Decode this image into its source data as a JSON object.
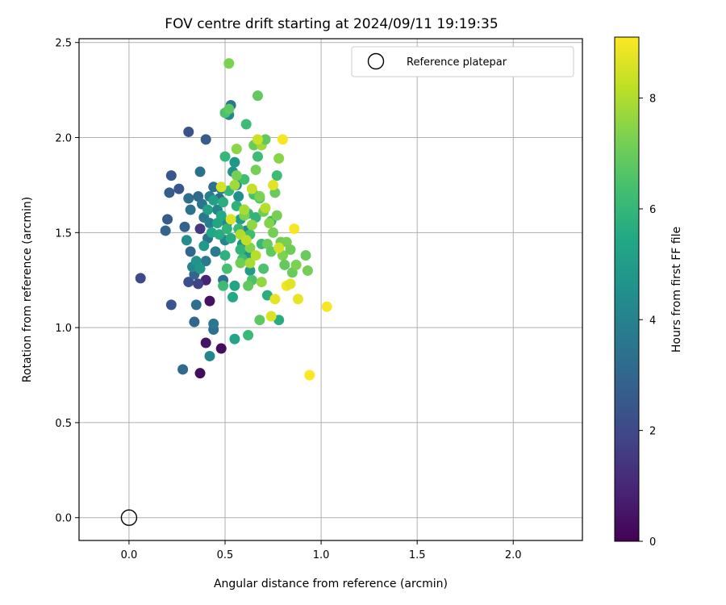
{
  "chart_data": {
    "type": "scatter",
    "title": "FOV centre drift starting at 2024/09/11 19:19:35",
    "xlabel": "Angular distance from reference (arcmin)",
    "ylabel": "Rotation from reference (arcmin)",
    "xlim": [
      -0.26,
      2.36
    ],
    "ylim": [
      -0.12,
      2.52
    ],
    "xticks": [
      0.0,
      0.5,
      1.0,
      1.5,
      2.0
    ],
    "xtick_labels": [
      "0.0",
      "0.5",
      "1.0",
      "1.5",
      "2.0"
    ],
    "yticks": [
      0.0,
      0.5,
      1.0,
      1.5,
      2.0,
      2.5
    ],
    "ytick_labels": [
      "0.0",
      "0.5",
      "1.0",
      "1.5",
      "2.0",
      "2.5"
    ],
    "grid": true,
    "legend": {
      "position": "upper right",
      "label": "Reference platepar"
    },
    "reference_point": {
      "x": 0.0,
      "y": 0.0,
      "marker": "hollow circle"
    },
    "colorbar": {
      "label": "Hours from first FF file",
      "colormap": "viridis",
      "range": [
        0,
        9.1
      ],
      "ticks": [
        0,
        2,
        4,
        6,
        8
      ],
      "tick_labels": [
        "0",
        "2",
        "4",
        "6",
        "8"
      ]
    },
    "series": [
      {
        "color_by": "hours",
        "points": [
          [
            0.37,
            0.76,
            0.3
          ],
          [
            0.48,
            0.89,
            0.3
          ],
          [
            0.42,
            1.14,
            0.4
          ],
          [
            0.4,
            0.92,
            0.5
          ],
          [
            0.4,
            1.25,
            0.9
          ],
          [
            0.06,
            1.26,
            2.1
          ],
          [
            0.22,
            1.12,
            2.4
          ],
          [
            0.31,
            1.24,
            2.2
          ],
          [
            0.36,
            1.23,
            1.8
          ],
          [
            0.28,
            0.78,
            3.1
          ],
          [
            0.34,
            1.03,
            3.0
          ],
          [
            0.35,
            1.12,
            3.3
          ],
          [
            0.44,
            0.99,
            3.4
          ],
          [
            0.44,
            1.02,
            3.6
          ],
          [
            0.42,
            0.85,
            4.1
          ],
          [
            0.31,
            2.03,
            2.3
          ],
          [
            0.4,
            1.99,
            2.6
          ],
          [
            0.22,
            1.8,
            2.5
          ],
          [
            0.19,
            1.51,
            2.9
          ],
          [
            0.2,
            1.57,
            2.6
          ],
          [
            0.21,
            1.71,
            2.7
          ],
          [
            0.26,
            1.73,
            2.4
          ],
          [
            0.29,
            1.53,
            2.8
          ],
          [
            0.31,
            1.68,
            3.3
          ],
          [
            0.32,
            1.62,
            3.4
          ],
          [
            0.32,
            1.4,
            3.0
          ],
          [
            0.34,
            1.28,
            2.9
          ],
          [
            0.36,
            1.69,
            3.1
          ],
          [
            0.37,
            1.52,
            1.5
          ],
          [
            0.37,
            1.82,
            3.3
          ],
          [
            0.38,
            1.65,
            3.5
          ],
          [
            0.39,
            1.58,
            3.6
          ],
          [
            0.4,
            1.35,
            3.7
          ],
          [
            0.41,
            1.47,
            3.5
          ],
          [
            0.42,
            1.55,
            3.9
          ],
          [
            0.42,
            1.69,
            3.8
          ],
          [
            0.44,
            1.74,
            3.4
          ],
          [
            0.45,
            1.4,
            3.8
          ],
          [
            0.46,
            1.62,
            4.0
          ],
          [
            0.47,
            1.68,
            3.2
          ],
          [
            0.48,
            1.73,
            3.9
          ],
          [
            0.49,
            1.25,
            3.4
          ],
          [
            0.5,
            1.46,
            4.1
          ],
          [
            0.51,
            1.55,
            4.4
          ],
          [
            0.52,
            2.12,
            4.2
          ],
          [
            0.53,
            2.17,
            3.6
          ],
          [
            0.54,
            1.82,
            4.6
          ],
          [
            0.55,
            1.87,
            4.8
          ],
          [
            0.56,
            1.75,
            4.2
          ],
          [
            0.57,
            1.69,
            4.5
          ],
          [
            0.58,
            1.57,
            5.0
          ],
          [
            0.59,
            1.44,
            4.7
          ],
          [
            0.6,
            1.62,
            5.1
          ],
          [
            0.61,
            1.51,
            4.3
          ],
          [
            0.62,
            1.38,
            4.8
          ],
          [
            0.63,
            1.3,
            5.0
          ],
          [
            0.3,
            1.46,
            4.4
          ],
          [
            0.33,
            1.32,
            4.2
          ],
          [
            0.35,
            1.35,
            4.6
          ],
          [
            0.37,
            1.31,
            4.8
          ],
          [
            0.39,
            1.43,
            4.9
          ],
          [
            0.41,
            1.62,
            5.2
          ],
          [
            0.43,
            1.5,
            5.4
          ],
          [
            0.44,
            1.67,
            5.1
          ],
          [
            0.46,
            1.55,
            5.3
          ],
          [
            0.47,
            1.49,
            5.6
          ],
          [
            0.48,
            1.59,
            5.5
          ],
          [
            0.49,
            1.66,
            5.7
          ],
          [
            0.5,
            1.38,
            5.8
          ],
          [
            0.51,
            1.52,
            5.9
          ],
          [
            0.52,
            1.72,
            6.0
          ],
          [
            0.53,
            1.47,
            5.6
          ],
          [
            0.54,
            1.16,
            5.5
          ],
          [
            0.55,
            1.22,
            5.3
          ],
          [
            0.55,
            0.94,
            5.4
          ],
          [
            0.56,
            1.64,
            5.8
          ],
          [
            0.57,
            1.52,
            6.1
          ],
          [
            0.58,
            1.41,
            5.9
          ],
          [
            0.59,
            1.36,
            6.2
          ],
          [
            0.6,
            1.78,
            6.3
          ],
          [
            0.62,
            0.96,
            6.1
          ],
          [
            0.62,
            1.6,
            6.0
          ],
          [
            0.63,
            1.49,
            6.3
          ],
          [
            0.64,
            1.25,
            6.5
          ],
          [
            0.65,
            1.7,
            6.4
          ],
          [
            0.66,
            1.58,
            5.9
          ],
          [
            0.67,
            1.9,
            6.2
          ],
          [
            0.68,
            1.68,
            6.6
          ],
          [
            0.69,
            1.44,
            6.1
          ],
          [
            0.7,
            1.31,
            6.5
          ],
          [
            0.72,
            1.17,
            5.7
          ],
          [
            0.74,
            1.56,
            6.0
          ],
          [
            0.77,
            1.8,
            6.2
          ],
          [
            0.78,
            1.04,
            5.6
          ],
          [
            0.5,
            1.9,
            6.0
          ],
          [
            0.5,
            2.13,
            6.5
          ],
          [
            0.52,
            2.15,
            6.8
          ],
          [
            0.49,
            1.22,
            6.2
          ],
          [
            0.51,
            1.31,
            6.4
          ],
          [
            0.52,
            2.39,
            7.3
          ],
          [
            0.56,
            1.94,
            7.5
          ],
          [
            0.56,
            1.8,
            7.2
          ],
          [
            0.58,
            1.34,
            7.1
          ],
          [
            0.6,
            1.59,
            7.3
          ],
          [
            0.61,
            2.07,
            6.2
          ],
          [
            0.62,
            1.22,
            6.9
          ],
          [
            0.63,
            1.42,
            7.4
          ],
          [
            0.64,
            1.54,
            7.6
          ],
          [
            0.65,
            1.96,
            7.0
          ],
          [
            0.66,
            1.83,
            7.2
          ],
          [
            0.67,
            2.22,
            6.9
          ],
          [
            0.68,
            1.69,
            7.3
          ],
          [
            0.69,
            1.96,
            7.8
          ],
          [
            0.7,
            1.61,
            7.1
          ],
          [
            0.71,
            1.99,
            6.8
          ],
          [
            0.72,
            1.44,
            7.0
          ],
          [
            0.73,
            1.55,
            7.4
          ],
          [
            0.74,
            1.4,
            6.8
          ],
          [
            0.75,
            1.5,
            7.2
          ],
          [
            0.76,
            1.71,
            7.0
          ],
          [
            0.77,
            1.59,
            7.2
          ],
          [
            0.78,
            1.89,
            7.5
          ],
          [
            0.79,
            1.45,
            7.1
          ],
          [
            0.8,
            1.38,
            7.3
          ],
          [
            0.81,
            1.33,
            6.9
          ],
          [
            0.82,
            1.45,
            7.2
          ],
          [
            0.84,
            1.41,
            7.1
          ],
          [
            0.85,
            1.29,
            7.0
          ],
          [
            0.87,
            1.33,
            7.3
          ],
          [
            0.92,
            1.38,
            7.0
          ],
          [
            0.93,
            1.3,
            7.2
          ],
          [
            0.68,
            1.04,
            6.8
          ],
          [
            0.69,
            1.24,
            7.6
          ],
          [
            0.55,
            1.75,
            7.8
          ],
          [
            0.58,
            1.49,
            8.0
          ],
          [
            0.61,
            1.46,
            8.2
          ],
          [
            0.63,
            1.34,
            7.9
          ],
          [
            0.64,
            1.73,
            8.3
          ],
          [
            0.66,
            1.38,
            8.1
          ],
          [
            0.67,
            1.99,
            8.4
          ],
          [
            0.71,
            1.63,
            8.1
          ],
          [
            0.74,
            1.06,
            8.6
          ],
          [
            0.75,
            1.75,
            8.7
          ],
          [
            0.76,
            1.15,
            8.8
          ],
          [
            0.78,
            1.42,
            8.5
          ],
          [
            0.8,
            1.99,
            9.0
          ],
          [
            0.82,
            1.22,
            8.9
          ],
          [
            0.84,
            1.23,
            8.7
          ],
          [
            0.86,
            1.52,
            9.0
          ],
          [
            0.88,
            1.15,
            8.8
          ],
          [
            0.94,
            0.75,
            9.1
          ],
          [
            1.03,
            1.11,
            9.0
          ],
          [
            0.48,
            1.74,
            8.5
          ],
          [
            0.53,
            1.57,
            8.6
          ],
          [
            0.6,
            1.62,
            7.9
          ]
        ]
      }
    ]
  }
}
